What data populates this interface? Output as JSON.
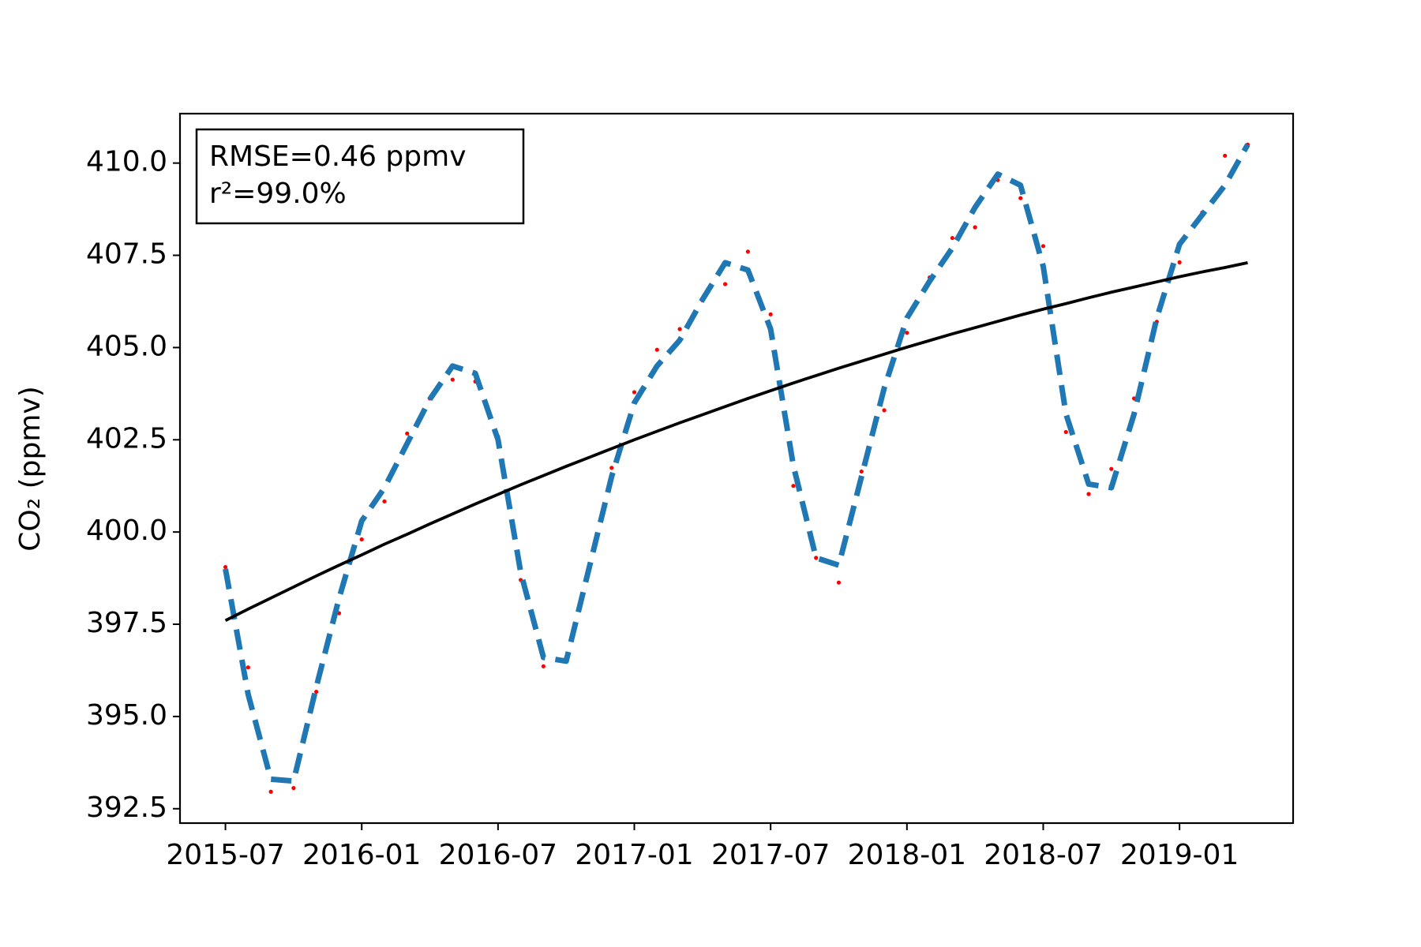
{
  "chart_data": {
    "type": "line",
    "y_label": "CO₂ (ppmv)",
    "annotations": [
      "RMSE=0.46 ppmv",
      "r²=99.0%"
    ],
    "x": [
      "2015-07",
      "2015-08",
      "2015-09",
      "2015-10",
      "2015-11",
      "2015-12",
      "2016-01",
      "2016-02",
      "2016-03",
      "2016-04",
      "2016-05",
      "2016-06",
      "2016-07",
      "2016-08",
      "2016-09",
      "2016-10",
      "2016-11",
      "2016-12",
      "2017-01",
      "2017-02",
      "2017-03",
      "2017-04",
      "2017-05",
      "2017-06",
      "2017-07",
      "2017-08",
      "2017-09",
      "2017-10",
      "2017-11",
      "2017-12",
      "2018-01",
      "2018-02",
      "2018-03",
      "2018-04",
      "2018-05",
      "2018-06",
      "2018-07",
      "2018-08",
      "2018-09",
      "2018-10",
      "2018-11",
      "2018-12",
      "2019-01",
      "2019-02",
      "2019-03",
      "2019-04"
    ],
    "series": [
      {
        "color": "#ff0000",
        "marker": "dot",
        "values": [
          399.05,
          396.33,
          392.96,
          393.06,
          395.67,
          397.8,
          399.8,
          400.83,
          402.67,
          403.62,
          404.13,
          404.08,
          402.59,
          398.7,
          396.36,
          396.6,
          399.0,
          401.74,
          403.79,
          404.94,
          405.5,
          406.28,
          406.72,
          407.6,
          405.9,
          401.25,
          399.3,
          398.63,
          401.64,
          403.3,
          405.4,
          406.9,
          407.97,
          408.26,
          409.54,
          409.05,
          407.75,
          402.71,
          401.03,
          401.71,
          403.62,
          405.7,
          407.31,
          408.66,
          410.2,
          410.5
        ]
      },
      {
        "color": "#1f77b4",
        "linestyle": "dashed",
        "values": [
          399.0,
          395.6,
          393.3,
          393.25,
          395.8,
          398.2,
          400.3,
          401.2,
          402.4,
          403.6,
          404.5,
          404.3,
          402.5,
          398.9,
          396.6,
          396.5,
          399.0,
          401.5,
          403.5,
          404.5,
          405.2,
          406.3,
          407.3,
          407.1,
          405.5,
          401.8,
          399.3,
          399.1,
          401.5,
          403.9,
          405.8,
          406.8,
          407.7,
          408.8,
          409.7,
          409.4,
          407.2,
          403.2,
          401.3,
          401.2,
          403.2,
          405.8,
          407.8,
          408.6,
          409.4,
          410.5
        ]
      },
      {
        "color": "#000000",
        "linestyle": "solid",
        "values": [
          397.6,
          397.91,
          398.21,
          398.51,
          398.81,
          399.1,
          399.38,
          399.67,
          399.94,
          400.22,
          400.49,
          400.76,
          401.02,
          401.28,
          401.53,
          401.78,
          402.02,
          402.26,
          402.5,
          402.73,
          402.96,
          403.18,
          403.4,
          403.62,
          403.83,
          404.04,
          404.24,
          404.44,
          404.63,
          404.82,
          405.01,
          405.19,
          405.37,
          405.54,
          405.71,
          405.88,
          406.04,
          406.19,
          406.35,
          406.5,
          406.64,
          406.78,
          406.92,
          407.05,
          407.17,
          407.3
        ]
      }
    ],
    "xlim": [
      "2015-05",
      "2019-06"
    ],
    "xticks": [
      "2015-07",
      "2016-01",
      "2016-07",
      "2017-01",
      "2017-07",
      "2018-01",
      "2018-07",
      "2019-01"
    ],
    "ylim": [
      392.11,
      411.34
    ],
    "yticks": [
      392.5,
      {
        "value": 395,
        "label": "395.0"
      },
      397.5,
      {
        "value": 400,
        "label": "400.0"
      },
      402.5,
      {
        "value": 405,
        "label": "405.0"
      },
      407.5,
      {
        "value": 410,
        "label": "410.0"
      }
    ],
    "grid": false
  }
}
